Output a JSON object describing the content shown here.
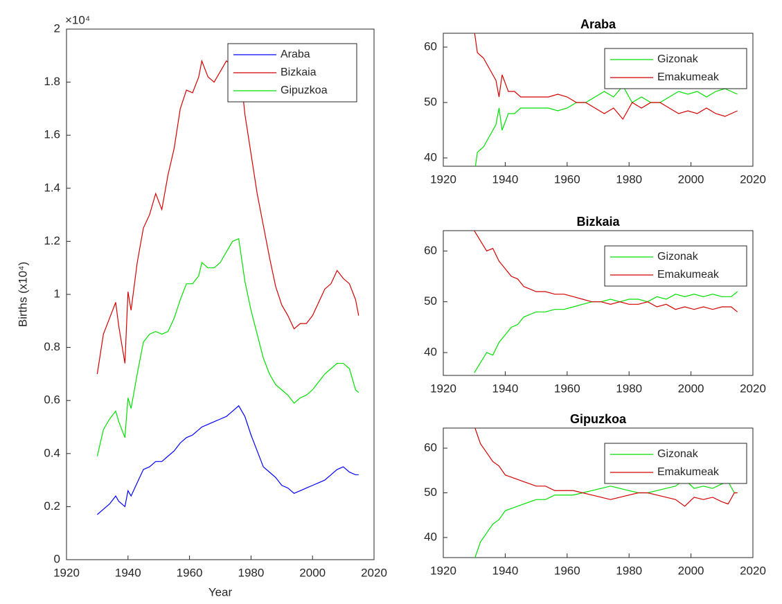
{
  "chart_data": [
    {
      "type": "line",
      "y_label": "Births (x10⁴)",
      "x_label": "Year",
      "y_multiplier": "×10⁴",
      "xlim": [
        1920,
        2020
      ],
      "xticks": [
        1920,
        1940,
        1960,
        1980,
        2000,
        2020
      ],
      "ylim": [
        0,
        2
      ],
      "yticks": [
        0,
        0.2,
        0.4,
        0.6,
        0.8,
        1,
        1.2,
        1.4,
        1.6,
        1.8,
        2
      ],
      "legend": "upper right",
      "grid": false,
      "x": [
        1930,
        1932,
        1934,
        1936,
        1937,
        1939,
        1940,
        1941,
        1943,
        1945,
        1947,
        1949,
        1951,
        1953,
        1955,
        1957,
        1959,
        1961,
        1963,
        1964,
        1966,
        1968,
        1970,
        1972,
        1974,
        1976,
        1978,
        1980,
        1982,
        1984,
        1986,
        1988,
        1990,
        1992,
        1994,
        1996,
        1998,
        2000,
        2002,
        2004,
        2006,
        2008,
        2010,
        2012,
        2014,
        2015
      ],
      "series": [
        {
          "name": "Araba",
          "color": "#0000ff",
          "values": [
            0.17,
            0.19,
            0.21,
            0.24,
            0.22,
            0.2,
            0.26,
            0.24,
            0.29,
            0.34,
            0.35,
            0.37,
            0.37,
            0.39,
            0.41,
            0.44,
            0.46,
            0.47,
            0.49,
            0.5,
            0.51,
            0.52,
            0.53,
            0.54,
            0.56,
            0.58,
            0.54,
            0.47,
            0.41,
            0.35,
            0.33,
            0.31,
            0.28,
            0.27,
            0.25,
            0.26,
            0.27,
            0.28,
            0.29,
            0.3,
            0.32,
            0.34,
            0.35,
            0.33,
            0.32,
            0.32
          ]
        },
        {
          "name": "Bizkaia",
          "color": "#d40000",
          "values": [
            0.7,
            0.85,
            0.91,
            0.97,
            0.88,
            0.74,
            1.01,
            0.94,
            1.12,
            1.25,
            1.3,
            1.38,
            1.32,
            1.45,
            1.55,
            1.7,
            1.77,
            1.76,
            1.82,
            1.88,
            1.82,
            1.8,
            1.84,
            1.88,
            1.86,
            1.9,
            1.68,
            1.53,
            1.38,
            1.26,
            1.14,
            1.03,
            0.96,
            0.92,
            0.87,
            0.89,
            0.89,
            0.92,
            0.97,
            1.02,
            1.04,
            1.09,
            1.06,
            1.04,
            0.98,
            0.92
          ]
        },
        {
          "name": "Gipuzkoa",
          "color": "#00e000",
          "values": [
            0.39,
            0.49,
            0.53,
            0.56,
            0.52,
            0.46,
            0.61,
            0.57,
            0.7,
            0.82,
            0.85,
            0.86,
            0.85,
            0.86,
            0.91,
            0.98,
            1.04,
            1.04,
            1.07,
            1.12,
            1.1,
            1.1,
            1.12,
            1.16,
            1.2,
            1.21,
            1.05,
            0.94,
            0.85,
            0.76,
            0.7,
            0.66,
            0.64,
            0.62,
            0.59,
            0.61,
            0.62,
            0.64,
            0.67,
            0.7,
            0.72,
            0.74,
            0.74,
            0.72,
            0.64,
            0.63
          ]
        }
      ]
    },
    {
      "type": "line",
      "title": "Araba",
      "xlim": [
        1920,
        2020
      ],
      "xticks": [
        1920,
        1940,
        1960,
        1980,
        2000,
        2020
      ],
      "ylim": [
        38.5,
        62.5
      ],
      "yticks": [
        40,
        50,
        60
      ],
      "legend": "upper right",
      "grid": false,
      "x": [
        1930,
        1931,
        1933,
        1935,
        1937,
        1938,
        1939,
        1941,
        1943,
        1945,
        1948,
        1951,
        1954,
        1957,
        1960,
        1963,
        1966,
        1969,
        1972,
        1975,
        1978,
        1981,
        1984,
        1987,
        1990,
        1993,
        1996,
        1999,
        2002,
        2005,
        2008,
        2011,
        2013,
        2015
      ],
      "series": [
        {
          "name": "Gizonak",
          "color": "#00e000",
          "values": [
            37,
            41,
            42,
            44,
            46,
            49,
            45,
            48,
            48,
            49,
            49,
            49,
            49,
            48.5,
            49,
            50,
            50,
            51,
            52,
            51,
            53,
            50,
            51,
            50,
            50,
            51,
            52,
            51.5,
            52,
            51,
            52,
            52.5,
            52,
            51.5
          ]
        },
        {
          "name": "Emakumeak",
          "color": "#d40000",
          "values": [
            63,
            59,
            58,
            56,
            54,
            51,
            55,
            52,
            52,
            51,
            51,
            51,
            51,
            51.5,
            51,
            50,
            50,
            49,
            48,
            49,
            47,
            50,
            49,
            50,
            50,
            49,
            48,
            48.5,
            48,
            49,
            48,
            47.5,
            48,
            48.5
          ]
        }
      ]
    },
    {
      "type": "line",
      "title": "Bizkaia",
      "xlim": [
        1920,
        2020
      ],
      "xticks": [
        1920,
        1940,
        1960,
        1980,
        2000,
        2020
      ],
      "ylim": [
        35.5,
        64
      ],
      "yticks": [
        40,
        50,
        60
      ],
      "legend": "upper right",
      "grid": false,
      "x": [
        1930,
        1932,
        1934,
        1936,
        1938,
        1940,
        1942,
        1944,
        1946,
        1948,
        1950,
        1953,
        1956,
        1959,
        1962,
        1965,
        1968,
        1971,
        1974,
        1977,
        1980,
        1983,
        1986,
        1989,
        1992,
        1995,
        1998,
        2001,
        2004,
        2007,
        2010,
        2013,
        2015
      ],
      "series": [
        {
          "name": "Gizonak",
          "color": "#00e000",
          "values": [
            36,
            38,
            40,
            39.5,
            42,
            43.5,
            45,
            45.5,
            47,
            47.5,
            48,
            48,
            48.5,
            48.5,
            49,
            49.5,
            50,
            50,
            50.5,
            50,
            50.5,
            50.5,
            50,
            51,
            50.5,
            51.5,
            51,
            51.5,
            51,
            51.5,
            51,
            51,
            52
          ]
        },
        {
          "name": "Emakumeak",
          "color": "#d40000",
          "values": [
            64,
            62,
            60,
            60.5,
            58,
            56.5,
            55,
            54.5,
            53,
            52.5,
            52,
            52,
            51.5,
            51.5,
            51,
            50.5,
            50,
            50,
            49.5,
            50,
            49.5,
            49.5,
            50,
            49,
            49.5,
            48.5,
            49,
            48.5,
            49,
            48.5,
            49,
            49,
            48
          ]
        }
      ]
    },
    {
      "type": "line",
      "title": "Gipuzkoa",
      "xlim": [
        1920,
        2020
      ],
      "xticks": [
        1920,
        1940,
        1960,
        1980,
        2000,
        2020
      ],
      "ylim": [
        35.5,
        64.5
      ],
      "yticks": [
        40,
        50,
        60
      ],
      "legend": "upper right",
      "grid": false,
      "x": [
        1930,
        1932,
        1934,
        1936,
        1938,
        1940,
        1942,
        1944,
        1946,
        1948,
        1950,
        1953,
        1956,
        1959,
        1962,
        1965,
        1968,
        1971,
        1974,
        1977,
        1980,
        1983,
        1986,
        1989,
        1992,
        1995,
        1998,
        2001,
        2004,
        2007,
        2010,
        2012,
        2014,
        2015
      ],
      "series": [
        {
          "name": "Gizonak",
          "color": "#00e000",
          "values": [
            35,
            39,
            41,
            43,
            44,
            46,
            46.5,
            47,
            47.5,
            48,
            48.5,
            48.5,
            49.5,
            49.5,
            49.5,
            50,
            50.5,
            51,
            51.5,
            51,
            50.5,
            50,
            50,
            50.5,
            51,
            51.5,
            53,
            51,
            51.5,
            51,
            52,
            52.5,
            50,
            50
          ]
        },
        {
          "name": "Emakumeak",
          "color": "#d40000",
          "values": [
            65,
            61,
            59,
            57,
            56,
            54,
            53.5,
            53,
            52.5,
            52,
            51.5,
            51.5,
            50.5,
            50.5,
            50.5,
            50,
            49.5,
            49,
            48.5,
            49,
            49.5,
            50,
            50,
            49.5,
            49,
            48.5,
            47,
            49,
            48.5,
            49,
            48,
            47.5,
            50,
            50
          ]
        }
      ]
    }
  ]
}
